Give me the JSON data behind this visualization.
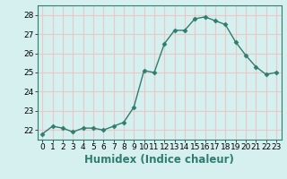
{
  "x": [
    0,
    1,
    2,
    3,
    4,
    5,
    6,
    7,
    8,
    9,
    10,
    11,
    12,
    13,
    14,
    15,
    16,
    17,
    18,
    19,
    20,
    21,
    22,
    23
  ],
  "y": [
    21.8,
    22.2,
    22.1,
    21.9,
    22.1,
    22.1,
    22.0,
    22.2,
    22.4,
    23.2,
    25.1,
    25.0,
    26.5,
    27.2,
    27.2,
    27.8,
    27.9,
    27.7,
    27.5,
    26.6,
    25.9,
    25.3,
    24.9,
    25.0
  ],
  "line_color": "#2e7d6e",
  "marker": "D",
  "markersize": 2.5,
  "linewidth": 1.0,
  "xlabel": "Humidex (Indice chaleur)",
  "xlim": [
    -0.5,
    23.5
  ],
  "ylim": [
    21.5,
    28.5
  ],
  "yticks": [
    22,
    23,
    24,
    25,
    26,
    27,
    28
  ],
  "xticks": [
    0,
    1,
    2,
    3,
    4,
    5,
    6,
    7,
    8,
    9,
    10,
    11,
    12,
    13,
    14,
    15,
    16,
    17,
    18,
    19,
    20,
    21,
    22,
    23
  ],
  "bg_color": "#d5f0ef",
  "grid_color": "#e8c8c8",
  "tick_labelsize": 6.5,
  "xlabel_fontsize": 8.5
}
